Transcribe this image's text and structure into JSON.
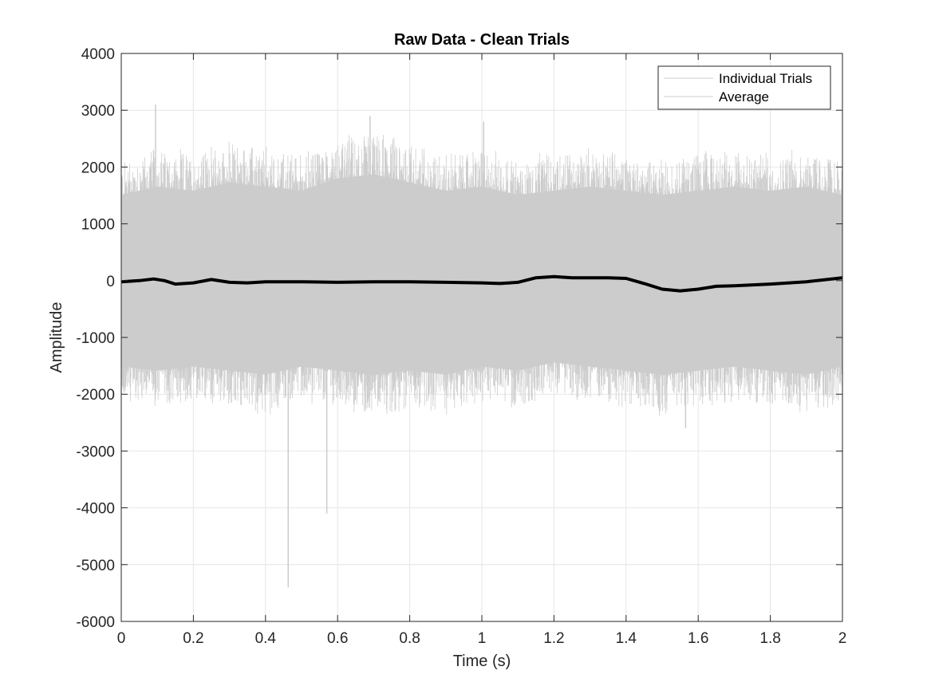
{
  "chart_data": {
    "type": "line",
    "title": "Raw Data - Clean Trials",
    "xlabel": "Time (s)",
    "ylabel": "Amplitude",
    "xlim": [
      0,
      2
    ],
    "ylim": [
      -6000,
      4000
    ],
    "x_ticks": [
      0,
      0.2,
      0.4,
      0.6,
      0.8,
      1,
      1.2,
      1.4,
      1.6,
      1.8,
      2
    ],
    "x_tick_labels": [
      "0",
      "0.2",
      "0.4",
      "0.6",
      "0.8",
      "1",
      "1.2",
      "1.4",
      "1.6",
      "1.8",
      "2"
    ],
    "y_ticks": [
      4000,
      3000,
      2000,
      1000,
      0,
      -1000,
      -2000,
      -3000,
      -4000,
      -5000,
      -6000
    ],
    "y_tick_labels": [
      "4000",
      "3000",
      "2000",
      "1000",
      "0",
      "-1000",
      "-2000",
      "-3000",
      "-4000",
      "-5000",
      "-6000"
    ],
    "grid": true,
    "legend_position": "top-right",
    "legend_entries": [
      "Individual Trials",
      "Average"
    ],
    "colors": {
      "trials": "#cccccc",
      "average": "#000000",
      "grid": "#e6e6e6",
      "axis": "#262626"
    },
    "series": [
      {
        "name": "Individual Trials",
        "style": "dense overlaid noisy traces",
        "envelope": {
          "x": [
            0,
            0.1,
            0.2,
            0.3,
            0.4,
            0.5,
            0.6,
            0.7,
            0.8,
            0.9,
            1.0,
            1.1,
            1.2,
            1.3,
            1.4,
            1.5,
            1.6,
            1.7,
            1.8,
            1.9,
            2.0
          ],
          "upper": [
            2100,
            2300,
            2200,
            2400,
            2300,
            2200,
            2500,
            2600,
            2400,
            2200,
            2300,
            2100,
            2200,
            2300,
            2200,
            2100,
            2200,
            2300,
            2200,
            2300,
            2100
          ],
          "lower": [
            -2100,
            -2200,
            -2100,
            -2200,
            -2300,
            -2100,
            -2200,
            -2300,
            -2200,
            -2300,
            -2100,
            -2200,
            -2000,
            -2100,
            -2200,
            -2300,
            -2200,
            -2100,
            -2200,
            -2300,
            -2100
          ]
        },
        "spikes": [
          {
            "x": 0.095,
            "y": 3100
          },
          {
            "x": 0.463,
            "y": -5400
          },
          {
            "x": 0.57,
            "y": -4100
          },
          {
            "x": 1.005,
            "y": 2800
          },
          {
            "x": 0.69,
            "y": 2900
          },
          {
            "x": 1.565,
            "y": -2600
          }
        ]
      },
      {
        "name": "Average",
        "x": [
          0,
          0.05,
          0.09,
          0.12,
          0.15,
          0.2,
          0.25,
          0.3,
          0.35,
          0.4,
          0.5,
          0.6,
          0.7,
          0.8,
          0.9,
          1.0,
          1.05,
          1.1,
          1.15,
          1.2,
          1.25,
          1.3,
          1.35,
          1.4,
          1.45,
          1.5,
          1.55,
          1.6,
          1.65,
          1.7,
          1.8,
          1.9,
          2.0
        ],
        "y": [
          -20,
          0,
          30,
          0,
          -60,
          -40,
          20,
          -30,
          -40,
          -20,
          -20,
          -30,
          -20,
          -20,
          -30,
          -40,
          -50,
          -30,
          50,
          70,
          50,
          50,
          50,
          40,
          -50,
          -150,
          -180,
          -150,
          -100,
          -90,
          -60,
          -20,
          50
        ]
      }
    ]
  }
}
